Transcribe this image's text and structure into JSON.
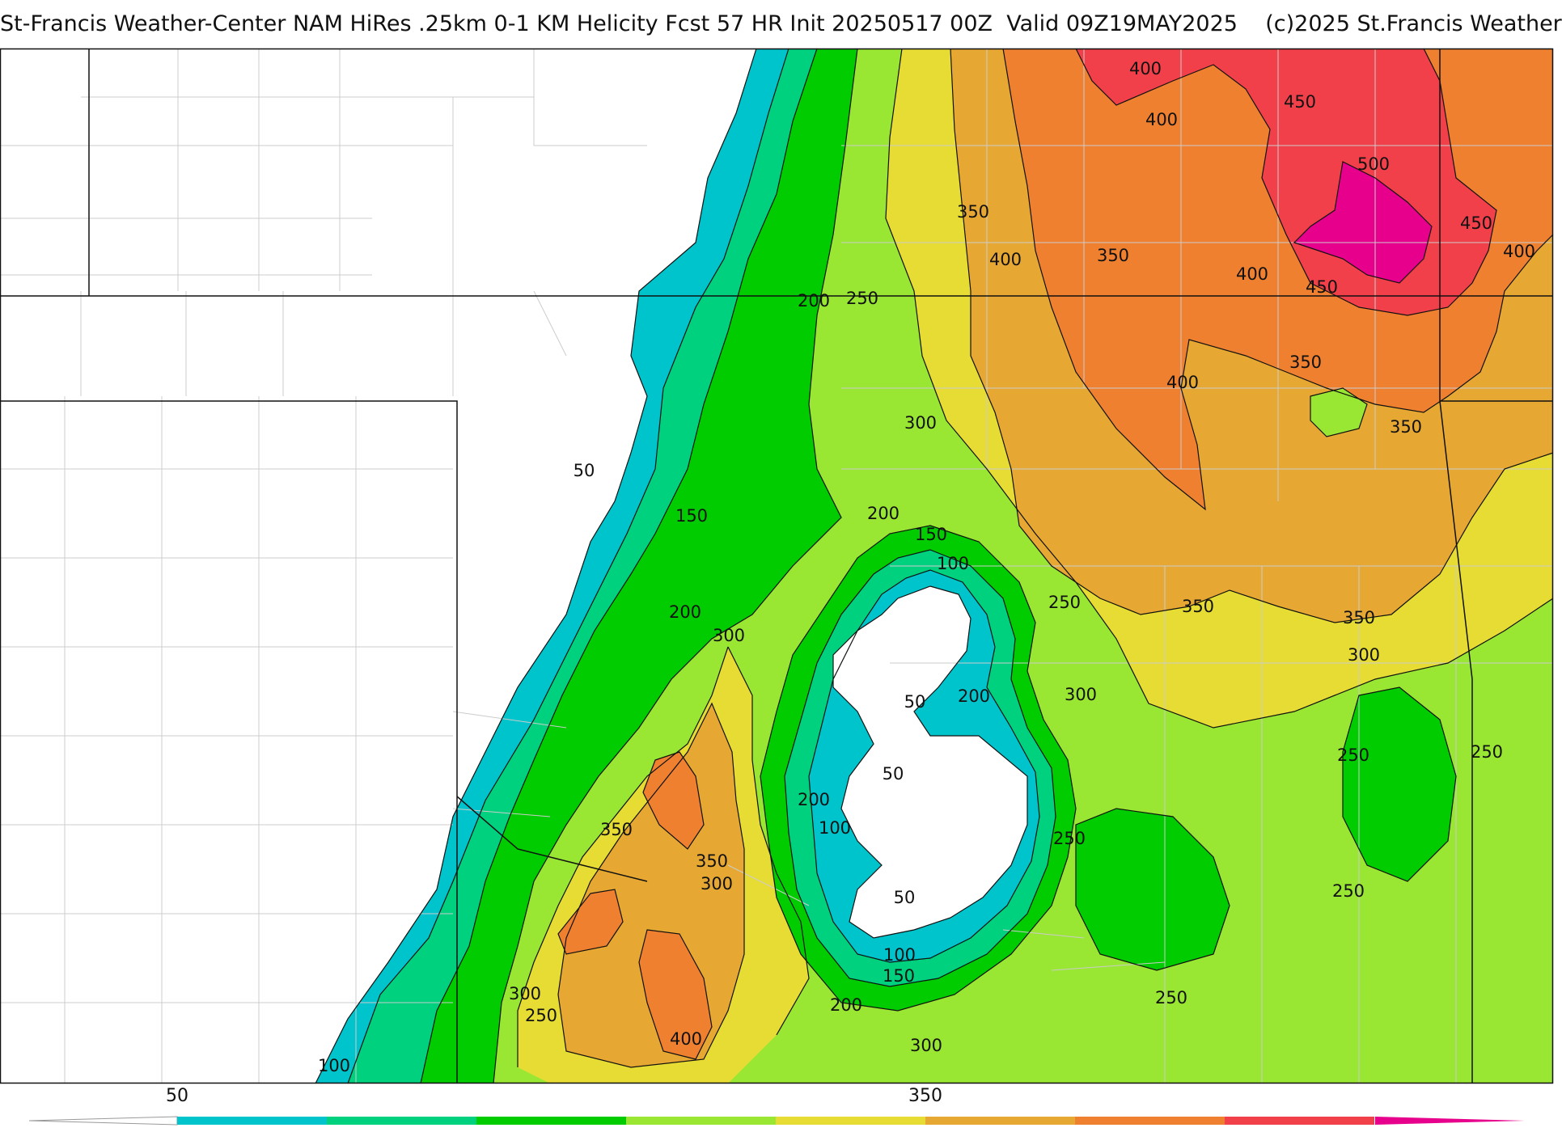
{
  "header": {
    "title": "St-Francis Weather-Center NAM HiRes .25km 0-1 KM Helicity Fcst 57 HR Init 20250517 00Z  Valid 09Z19MAY2025    (c)2025 St.Francis Weather"
  },
  "colorbar": {
    "colors": [
      "#00c4cc",
      "#00d17f",
      "#00cc00",
      "#99e633",
      "#e6dc33",
      "#e6a832",
      "#ee8030",
      "#f2404a",
      "#e6008c"
    ],
    "tick_labels": [
      {
        "value": 50,
        "label": "50"
      },
      {
        "value": 350,
        "label": "350"
      }
    ]
  },
  "contour_labels": [
    {
      "text": "400"
    },
    {
      "text": "450"
    },
    {
      "text": "400"
    },
    {
      "text": "500"
    },
    {
      "text": "450"
    },
    {
      "text": "400"
    },
    {
      "text": "350"
    },
    {
      "text": "400"
    },
    {
      "text": "350"
    },
    {
      "text": "400"
    },
    {
      "text": "450"
    },
    {
      "text": "200"
    },
    {
      "text": "250"
    },
    {
      "text": "350"
    },
    {
      "text": "400"
    },
    {
      "text": "300"
    },
    {
      "text": "350"
    },
    {
      "text": "50"
    },
    {
      "text": "150"
    },
    {
      "text": "200"
    },
    {
      "text": "150"
    },
    {
      "text": "100"
    },
    {
      "text": "250"
    },
    {
      "text": "350"
    },
    {
      "text": "350"
    },
    {
      "text": "200"
    },
    {
      "text": "300"
    },
    {
      "text": "300"
    },
    {
      "text": "50"
    },
    {
      "text": "200"
    },
    {
      "text": "300"
    },
    {
      "text": "50"
    },
    {
      "text": "250"
    },
    {
      "text": "250"
    },
    {
      "text": "200"
    },
    {
      "text": "100"
    },
    {
      "text": "350"
    },
    {
      "text": "250"
    },
    {
      "text": "350"
    },
    {
      "text": "300"
    },
    {
      "text": "50"
    },
    {
      "text": "250"
    },
    {
      "text": "300"
    },
    {
      "text": "250"
    },
    {
      "text": "100"
    },
    {
      "text": "150"
    },
    {
      "text": "200"
    },
    {
      "text": "250"
    },
    {
      "text": "400"
    },
    {
      "text": "300"
    },
    {
      "text": "100"
    }
  ]
}
